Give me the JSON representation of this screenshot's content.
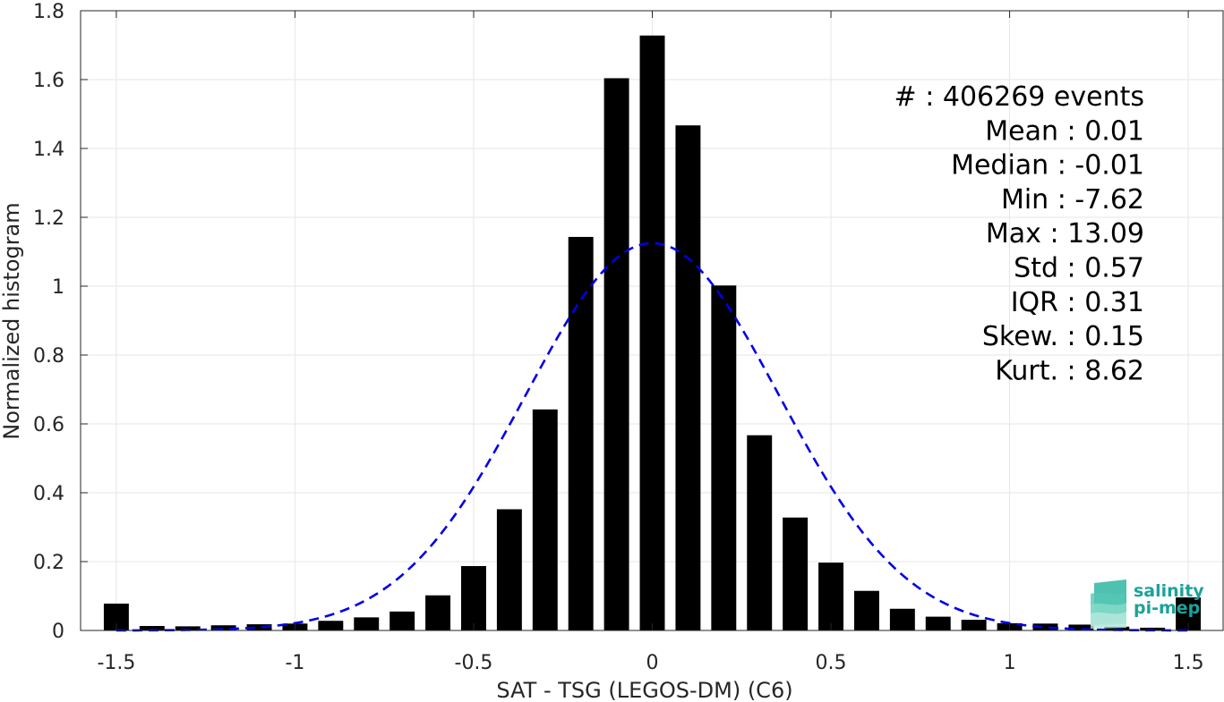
{
  "chart_data": {
    "type": "bar",
    "xlabel": "SAT - TSG (LEGOS-DM) (C6)",
    "ylabel": "Normalized histogram",
    "xlim": [
      -1.6,
      1.6
    ],
    "ylim": [
      0,
      1.8
    ],
    "xticks": [
      -1.5,
      -1,
      -0.5,
      0,
      0.5,
      1,
      1.5
    ],
    "xtick_labels": [
      "-1.5",
      "-1",
      "-0.5",
      "0",
      "0.5",
      "1",
      "1.5"
    ],
    "yticks": [
      0,
      0.2,
      0.4,
      0.6,
      0.8,
      1,
      1.2,
      1.4,
      1.6,
      1.8
    ],
    "ytick_labels": [
      "0",
      "0.2",
      "0.4",
      "0.6",
      "0.8",
      "1",
      "1.2",
      "1.4",
      "1.6",
      "1.8"
    ],
    "grid": true,
    "bin_centers": [
      -1.5,
      -1.4,
      -1.3,
      -1.2,
      -1.1,
      -1.0,
      -0.9,
      -0.8,
      -0.7,
      -0.6,
      -0.5,
      -0.4,
      -0.3,
      -0.2,
      -0.1,
      0.0,
      0.1,
      0.2,
      0.3,
      0.4,
      0.5,
      0.6,
      0.7,
      0.8,
      0.9,
      1.0,
      1.1,
      1.2,
      1.3,
      1.4,
      1.5
    ],
    "values": [
      0.078,
      0.013,
      0.012,
      0.015,
      0.018,
      0.02,
      0.028,
      0.038,
      0.055,
      0.102,
      0.187,
      0.352,
      0.642,
      1.143,
      1.604,
      1.728,
      1.467,
      1.002,
      0.567,
      0.328,
      0.197,
      0.115,
      0.063,
      0.04,
      0.031,
      0.021,
      0.02,
      0.017,
      0.011,
      0.008,
      0.096
    ],
    "fit": {
      "type": "normal",
      "mean": 0.0,
      "std": 0.355,
      "peak": 1.125,
      "style": "dashed",
      "color": "#0000e6"
    },
    "bar_color": "#000000"
  },
  "stats": [
    "#  : 406269 events",
    "Mean : 0.01",
    "Median : -0.01",
    "Min : -7.62",
    "Max : 13.09",
    "Std : 0.57",
    "IQR : 0.31",
    "Skew. : 0.15",
    "Kurt. : 8.62"
  ],
  "logo": {
    "line1": "salinity",
    "line2": "pi-mep",
    "color": "#1aa39a"
  }
}
